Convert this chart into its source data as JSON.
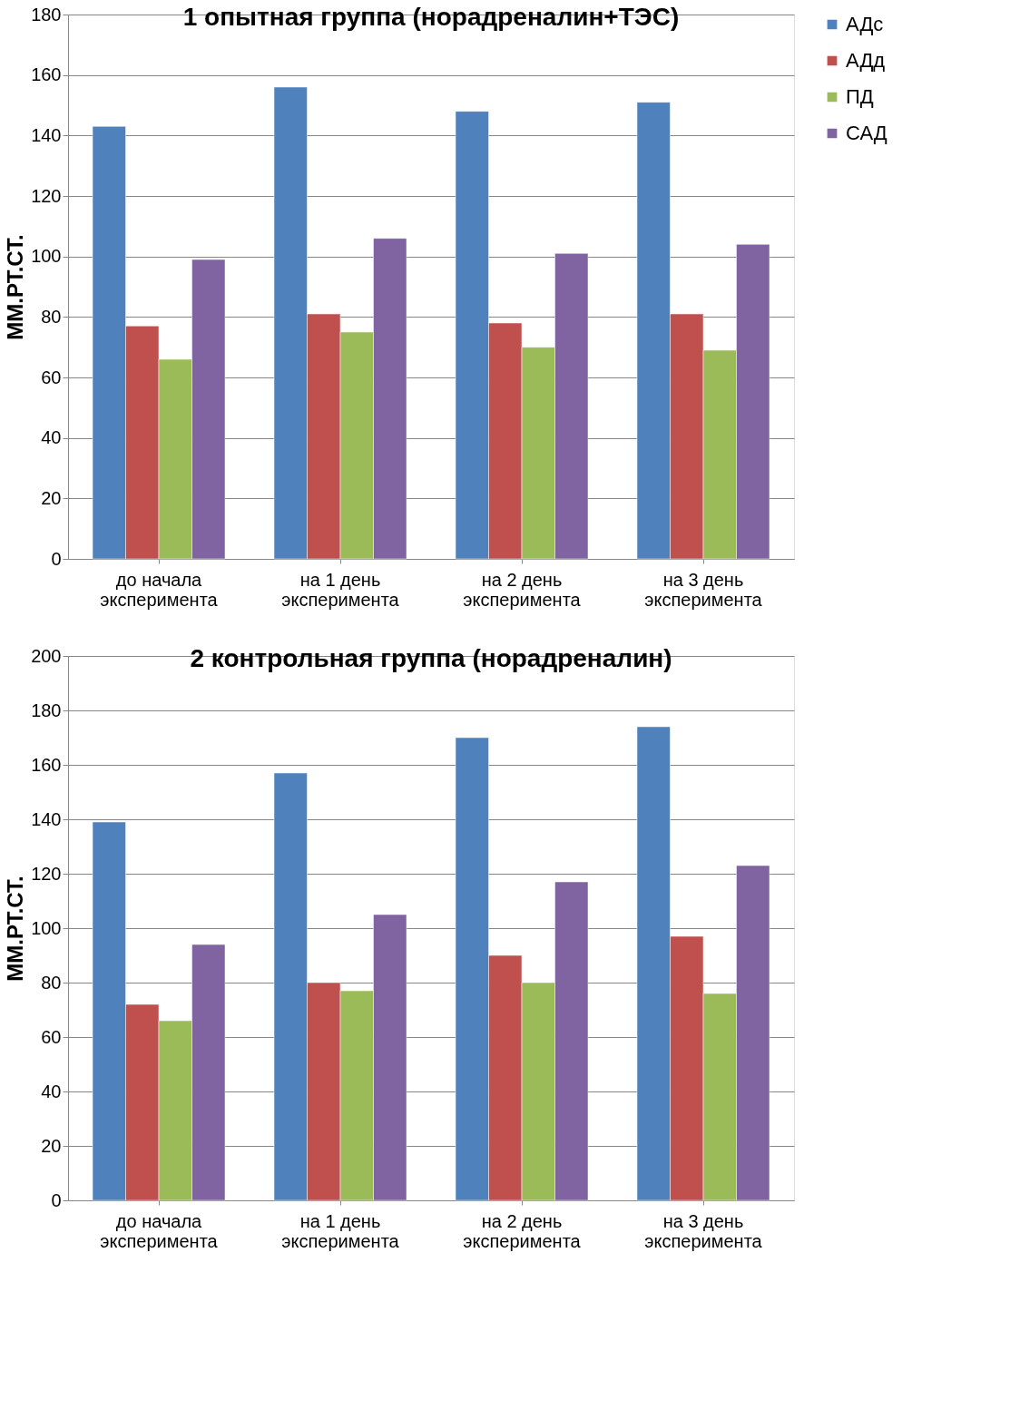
{
  "chart_data": [
    {
      "type": "bar",
      "title": "1 опытная группа (норадреналин+ТЭС)",
      "ylabel": "ММ.РТ.СТ.",
      "categories": [
        "до начала эксперимента",
        "на 1 день эксперимента",
        "на 2 день эксперимента",
        "на 3 день эксперимента"
      ],
      "ylim": [
        0,
        180
      ],
      "yticks": [
        0,
        20,
        40,
        60,
        80,
        100,
        120,
        140,
        160,
        180
      ],
      "grid": "y",
      "legend": "right",
      "series": [
        {
          "name": "АДс",
          "color": "#4f81bd",
          "values": [
            143,
            156,
            148,
            151
          ]
        },
        {
          "name": "АДд",
          "color": "#c0504d",
          "values": [
            77,
            81,
            78,
            81
          ]
        },
        {
          "name": "ПД",
          "color": "#9bbb59",
          "values": [
            66,
            75,
            70,
            69
          ]
        },
        {
          "name": "САД",
          "color": "#8064a2",
          "values": [
            99,
            106,
            101,
            104
          ]
        }
      ]
    },
    {
      "type": "bar",
      "title": "2 контрольная группа (норадреналин)",
      "ylabel": "ММ.РТ.СТ.",
      "categories": [
        "до начала эксперимента",
        "на 1 день эксперимента",
        "на 2 день эксперимента",
        "на 3 день эксперимента"
      ],
      "ylim": [
        0,
        200
      ],
      "yticks": [
        0,
        20,
        40,
        60,
        80,
        100,
        120,
        140,
        160,
        180,
        200
      ],
      "grid": "y",
      "legend": "right",
      "series": [
        {
          "name": "АДс",
          "color": "#4f81bd",
          "values": [
            139,
            157,
            170,
            174
          ]
        },
        {
          "name": "АДд",
          "color": "#c0504d",
          "values": [
            72,
            80,
            90,
            97
          ]
        },
        {
          "name": "ПД",
          "color": "#9bbb59",
          "values": [
            66,
            77,
            80,
            76
          ]
        },
        {
          "name": "САД",
          "color": "#8064a2",
          "values": [
            94,
            105,
            117,
            123
          ]
        }
      ]
    }
  ]
}
